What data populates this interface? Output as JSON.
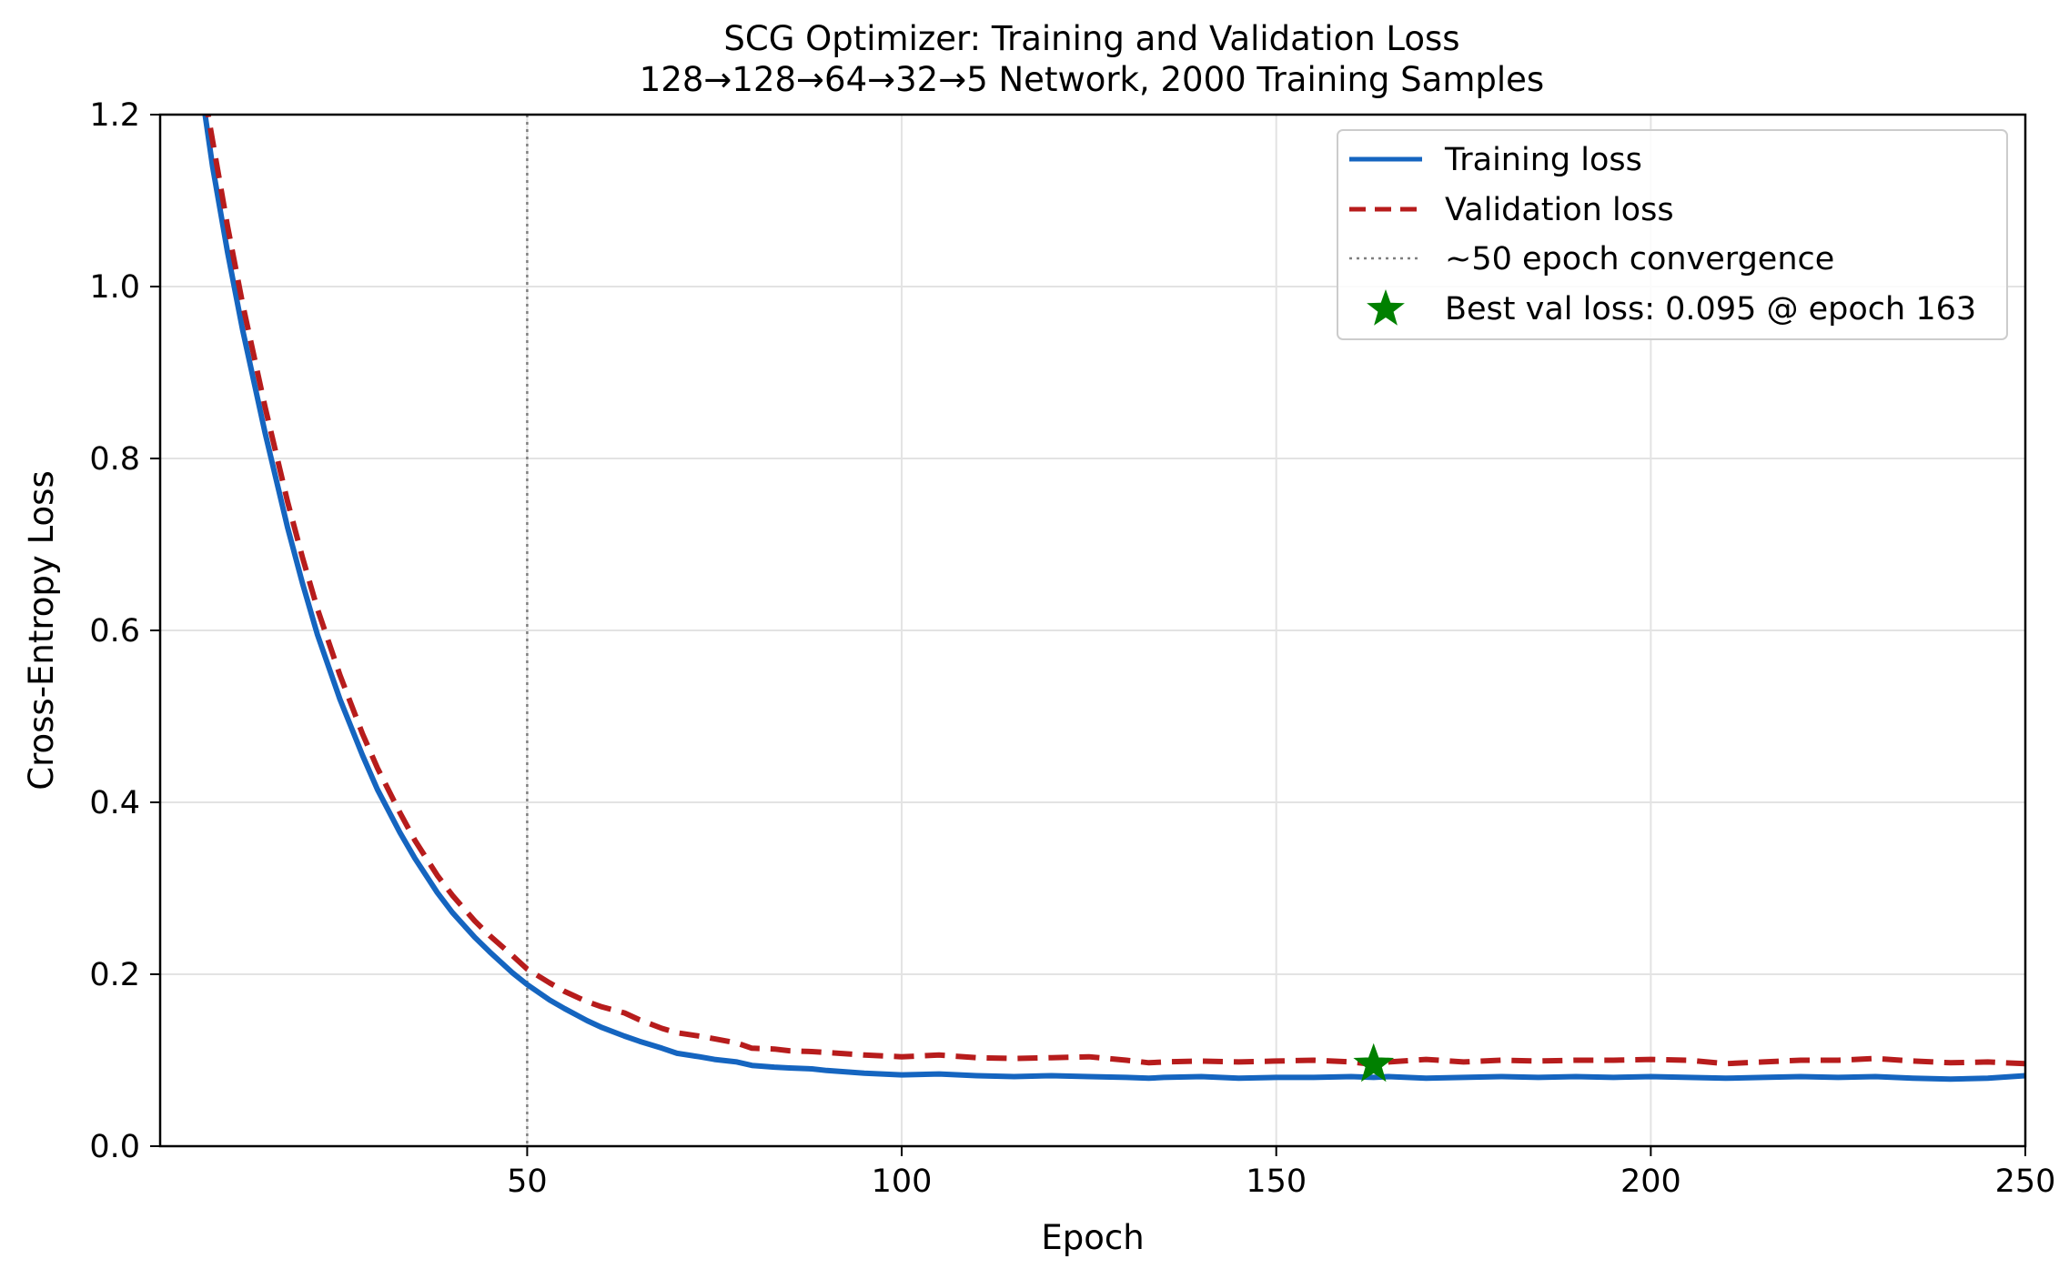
{
  "chart_data": {
    "type": "line",
    "title": "SCG Optimizer: Training and Validation Loss",
    "subtitle": "128→128→64→32→5 Network, 2000 Training Samples",
    "xlabel": "Epoch",
    "ylabel": "Cross-Entropy Loss",
    "xlim": [
      1,
      250
    ],
    "ylim": [
      0.0,
      1.2
    ],
    "xticks": [
      50,
      100,
      150,
      200,
      250
    ],
    "xtick_labels": [
      "50",
      "100",
      "150",
      "200",
      "250"
    ],
    "yticks": [
      0.0,
      0.2,
      0.4,
      0.6,
      0.8,
      1.0,
      1.2
    ],
    "ytick_labels": [
      "0.0",
      "0.2",
      "0.4",
      "0.6",
      "0.8",
      "1.0",
      "1.2"
    ],
    "grid": true,
    "legend_position": "top-right",
    "series": [
      {
        "name": "Training loss",
        "color": "#1565c0",
        "style": "solid",
        "x": [
          7,
          8,
          10,
          12,
          15,
          18,
          20,
          22,
          25,
          28,
          30,
          33,
          35,
          38,
          40,
          43,
          45,
          48,
          50,
          53,
          55,
          58,
          60,
          63,
          65,
          68,
          70,
          73,
          75,
          78,
          80,
          83,
          85,
          88,
          90,
          95,
          100,
          105,
          110,
          115,
          120,
          125,
          130,
          133,
          135,
          140,
          145,
          150,
          155,
          160,
          163,
          165,
          170,
          175,
          180,
          185,
          190,
          195,
          200,
          205,
          210,
          215,
          220,
          225,
          230,
          235,
          240,
          245,
          250
        ],
        "y": [
          1.2,
          1.14,
          1.04,
          0.95,
          0.83,
          0.72,
          0.655,
          0.595,
          0.52,
          0.455,
          0.415,
          0.365,
          0.335,
          0.295,
          0.272,
          0.243,
          0.226,
          0.202,
          0.188,
          0.17,
          0.16,
          0.146,
          0.138,
          0.128,
          0.122,
          0.114,
          0.108,
          0.104,
          0.101,
          0.098,
          0.094,
          0.092,
          0.091,
          0.09,
          0.088,
          0.085,
          0.083,
          0.084,
          0.082,
          0.081,
          0.082,
          0.081,
          0.08,
          0.079,
          0.08,
          0.081,
          0.079,
          0.08,
          0.08,
          0.081,
          0.08,
          0.081,
          0.079,
          0.08,
          0.081,
          0.08,
          0.081,
          0.08,
          0.081,
          0.08,
          0.079,
          0.08,
          0.081,
          0.08,
          0.081,
          0.079,
          0.078,
          0.079,
          0.082
        ]
      },
      {
        "name": "Validation loss",
        "color": "#b71c1c",
        "style": "dashed",
        "x": [
          7,
          8,
          10,
          12,
          15,
          18,
          20,
          22,
          25,
          28,
          30,
          33,
          35,
          38,
          40,
          43,
          45,
          48,
          50,
          53,
          55,
          58,
          60,
          63,
          65,
          68,
          70,
          73,
          75,
          78,
          80,
          83,
          85,
          88,
          90,
          95,
          100,
          105,
          110,
          115,
          120,
          125,
          130,
          133,
          135,
          140,
          145,
          150,
          155,
          160,
          163,
          165,
          170,
          175,
          180,
          185,
          190,
          195,
          200,
          205,
          210,
          215,
          220,
          225,
          230,
          235,
          240,
          245,
          250
        ],
        "y": [
          1.22,
          1.17,
          1.07,
          0.98,
          0.86,
          0.75,
          0.685,
          0.625,
          0.548,
          0.48,
          0.44,
          0.388,
          0.356,
          0.315,
          0.292,
          0.262,
          0.245,
          0.222,
          0.206,
          0.19,
          0.18,
          0.168,
          0.162,
          0.155,
          0.147,
          0.137,
          0.132,
          0.128,
          0.125,
          0.12,
          0.114,
          0.113,
          0.111,
          0.11,
          0.109,
          0.106,
          0.104,
          0.106,
          0.103,
          0.102,
          0.103,
          0.104,
          0.1,
          0.097,
          0.098,
          0.099,
          0.098,
          0.099,
          0.1,
          0.098,
          0.095,
          0.098,
          0.101,
          0.098,
          0.1,
          0.099,
          0.1,
          0.1,
          0.101,
          0.1,
          0.096,
          0.098,
          0.1,
          0.1,
          0.102,
          0.099,
          0.097,
          0.098,
          0.096
        ]
      }
    ],
    "reference_line": {
      "name": "~50 epoch convergence",
      "x": 50,
      "color": "#7f7f7f",
      "style": "dotted"
    },
    "marker": {
      "name": "Best val loss: 0.095 @ epoch 163",
      "x": 163,
      "y": 0.095,
      "color": "#008000",
      "symbol": "star-icon"
    }
  }
}
